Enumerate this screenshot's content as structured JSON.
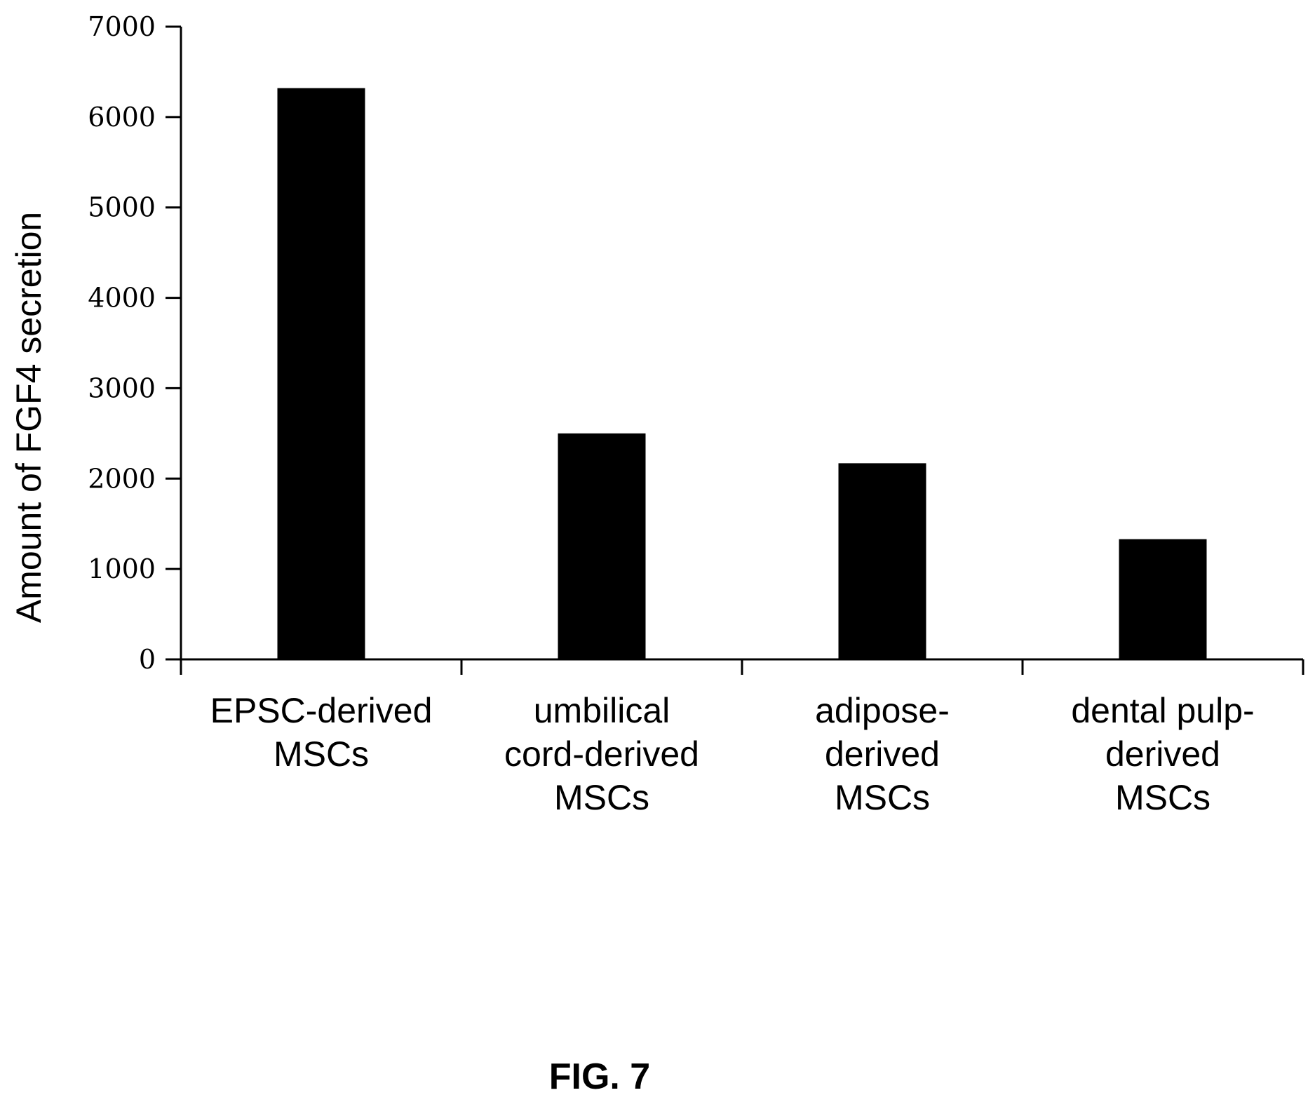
{
  "chart_data": {
    "type": "bar",
    "categories": [
      [
        "EPSC-derived",
        "MSCs"
      ],
      [
        "umbilical",
        "cord-derived",
        "MSCs"
      ],
      [
        "adipose-",
        "derived",
        "MSCs"
      ],
      [
        "dental pulp-",
        "derived",
        "MSCs"
      ]
    ],
    "values": [
      6320,
      2500,
      2170,
      1330
    ],
    "title": "",
    "xlabel": "",
    "ylabel": "Amount of FGF4 secretion",
    "ylim": [
      0,
      7000
    ],
    "yticks": [
      "0",
      "1000",
      "2000",
      "3000",
      "4000",
      "5000",
      "6000",
      "7000"
    ],
    "bar_color": "#000000",
    "grid": false,
    "legend": "none"
  },
  "figure": {
    "caption": "FIG. 7"
  }
}
